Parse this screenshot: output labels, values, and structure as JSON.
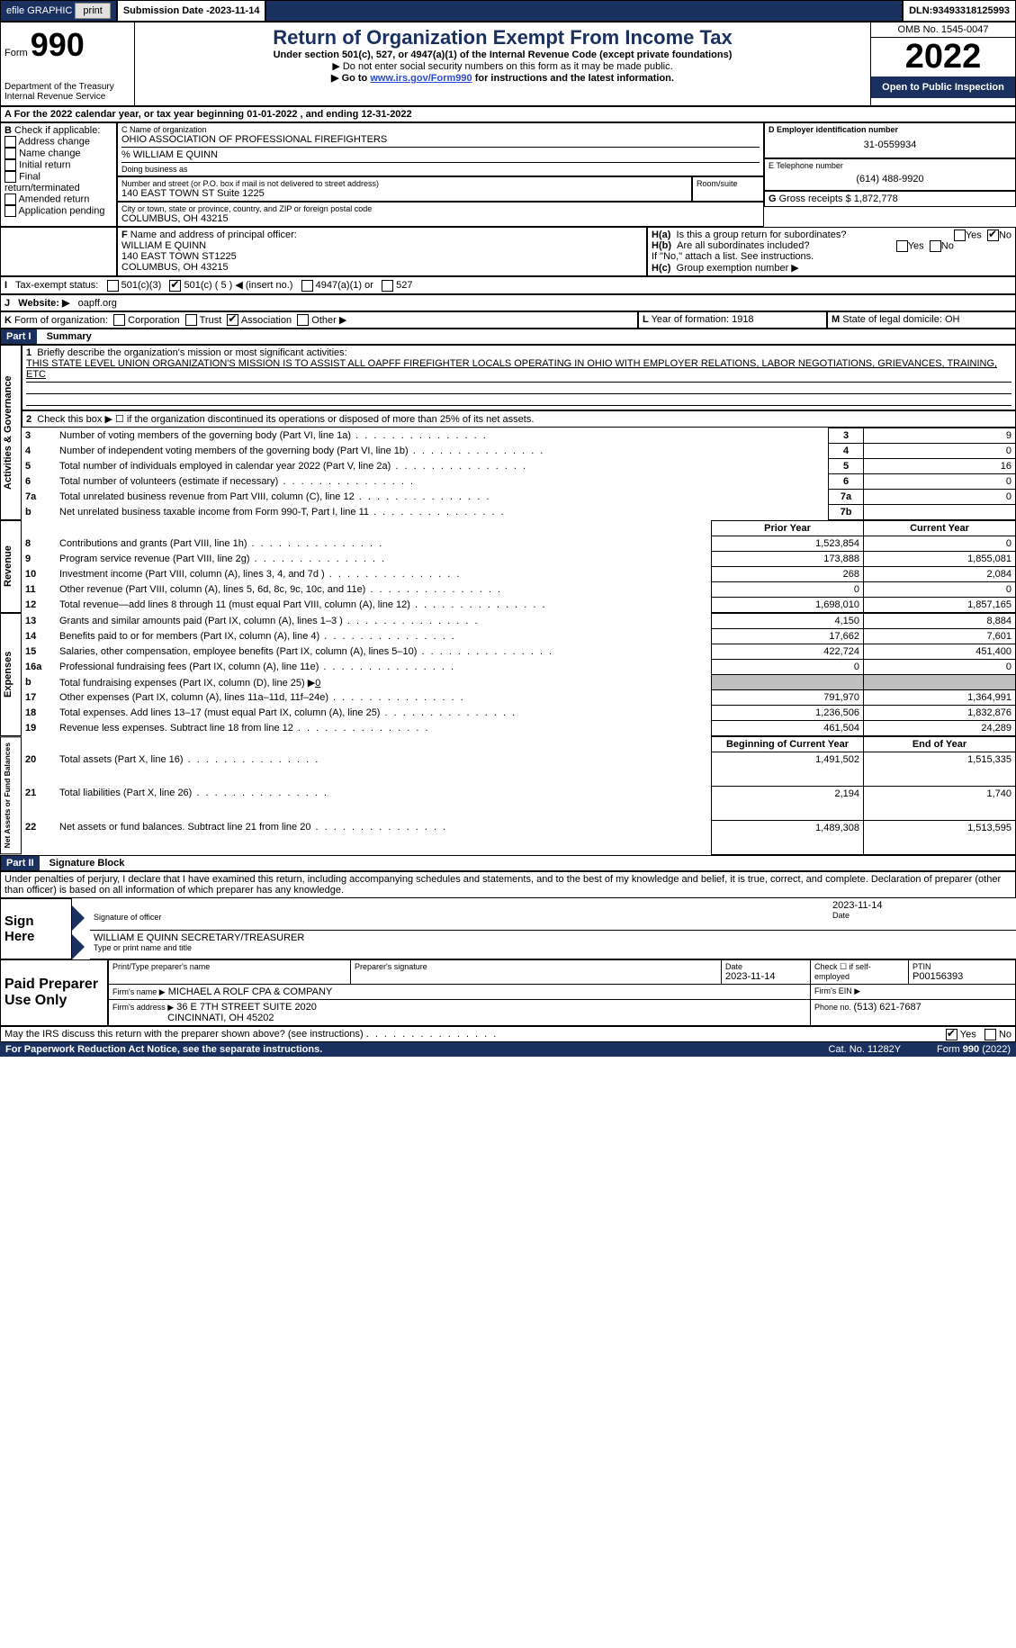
{
  "topbar": {
    "efile": "efile GRAPHIC",
    "print": "print",
    "submission_label": "Submission Date - ",
    "submission_date": "2023-11-14",
    "dln_label": "DLN: ",
    "dln": "93493318125993"
  },
  "header": {
    "form_label": "Form",
    "form_no": "990",
    "dept": "Department of the Treasury",
    "irs": "Internal Revenue Service",
    "title": "Return of Organization Exempt From Income Tax",
    "subtitle": "Under section 501(c), 527, or 4947(a)(1) of the Internal Revenue Code (except private foundations)",
    "note1": "Do not enter social security numbers on this form as it may be made public.",
    "note2_pre": "Go to ",
    "note2_link": "www.irs.gov/Form990",
    "note2_post": " for instructions and the latest information.",
    "omb_label": "OMB No. 1545-0047",
    "year": "2022",
    "open_inspection": "Open to Public Inspection"
  },
  "line_a": {
    "text_pre": "For the 2022 calendar year, or tax year beginning ",
    "begin": "01-01-2022",
    "mid": " , and ending ",
    "end": "12-31-2022"
  },
  "box_b": {
    "label": "B",
    "check_label": " Check if applicable:",
    "items": [
      "Address change",
      "Name change",
      "Initial return",
      "Final return/terminated",
      "Amended return",
      "Application pending"
    ]
  },
  "box_c": {
    "name_label": "C Name of organization",
    "name": "OHIO ASSOCIATION OF PROFESSIONAL FIREFIGHTERS",
    "care_of": "% WILLIAM E QUINN",
    "dba_label": "Doing business as",
    "street_label": "Number and street (or P.O. box if mail is not delivered to street address)",
    "room_label": "Room/suite",
    "street": "140 EAST TOWN ST Suite 1225",
    "city_label": "City or town, state or province, country, and ZIP or foreign postal code",
    "city": "COLUMBUS, OH  43215"
  },
  "box_d": {
    "label": "D Employer identification number",
    "value": "31-0559934"
  },
  "box_e": {
    "label": "E Telephone number",
    "value": "(614) 488-9920"
  },
  "box_g": {
    "label": "G",
    "text": "Gross receipts $ ",
    "value": "1,872,778"
  },
  "box_f": {
    "label": "F",
    "text": " Name and address of principal officer:",
    "name": "WILLIAM E QUINN",
    "addr1": "140 EAST TOWN ST1225",
    "addr2": "COLUMBUS, OH  43215"
  },
  "box_h": {
    "a_label": "H(a)",
    "a_text": "Is this a group return for subordinates?",
    "b_label": "H(b)",
    "b_text": "Are all subordinates included?",
    "note": "If \"No,\" attach a list. See instructions.",
    "c_label": "H(c)",
    "c_text": "Group exemption number ▶",
    "yes": "Yes",
    "no": "No"
  },
  "line_i": {
    "label": "I",
    "text": "Tax-exempt status:",
    "opt1": "501(c)(3)",
    "opt2a": "501(c) ( ",
    "opt2b": "5",
    "opt2c": " ) ◀ (insert no.)",
    "opt3": "4947(a)(1) or",
    "opt4": "527"
  },
  "line_j": {
    "label": "J",
    "text": "Website: ▶",
    "value": "oapff.org"
  },
  "line_k": {
    "label": "K",
    "text": " Form of organization:",
    "opts": [
      "Corporation",
      "Trust",
      "Association",
      "Other ▶"
    ]
  },
  "line_l": {
    "label": "L",
    "text": " Year of formation: ",
    "value": "1918"
  },
  "line_m": {
    "label": "M",
    "text": " State of legal domicile: ",
    "value": "OH"
  },
  "part1": {
    "bar": "Part I",
    "title": "Summary",
    "side_ag": "Activities & Governance",
    "side_rev": "Revenue",
    "side_exp": "Expenses",
    "side_na": "Net Assets or Fund Balances",
    "q1_label": "1",
    "q1_text": "Briefly describe the organization's mission or most significant activities:",
    "q1_val": "THIS STATE LEVEL UNION ORGANIZATION'S MISSION IS TO ASSIST ALL OAPFF FIREFIGHTER LOCALS OPERATING IN OHIO WITH EMPLOYER RELATIONS, LABOR NEGOTIATIONS, GRIEVANCES, TRAINING, ETC",
    "q2_label": "2",
    "q2_text": "Check this box ▶ ☐ if the organization discontinued its operations or disposed of more than 25% of its net assets.",
    "rows_ag": [
      {
        "n": "3",
        "t": "Number of voting members of the governing body (Part VI, line 1a)",
        "box": "3",
        "v": "9"
      },
      {
        "n": "4",
        "t": "Number of independent voting members of the governing body (Part VI, line 1b)",
        "box": "4",
        "v": "0"
      },
      {
        "n": "5",
        "t": "Total number of individuals employed in calendar year 2022 (Part V, line 2a)",
        "box": "5",
        "v": "16"
      },
      {
        "n": "6",
        "t": "Total number of volunteers (estimate if necessary)",
        "box": "6",
        "v": "0"
      },
      {
        "n": "7a",
        "t": "Total unrelated business revenue from Part VIII, column (C), line 12",
        "box": "7a",
        "v": "0"
      },
      {
        "n": "b",
        "t": "Net unrelated business taxable income from Form 990-T, Part I, line 11",
        "box": "7b",
        "v": ""
      }
    ],
    "col_prior": "Prior Year",
    "col_current": "Current Year",
    "rows_rev": [
      {
        "n": "8",
        "t": "Contributions and grants (Part VIII, line 1h)",
        "p": "1,523,854",
        "c": "0"
      },
      {
        "n": "9",
        "t": "Program service revenue (Part VIII, line 2g)",
        "p": "173,888",
        "c": "1,855,081"
      },
      {
        "n": "10",
        "t": "Investment income (Part VIII, column (A), lines 3, 4, and 7d )",
        "p": "268",
        "c": "2,084"
      },
      {
        "n": "11",
        "t": "Other revenue (Part VIII, column (A), lines 5, 6d, 8c, 9c, 10c, and 11e)",
        "p": "0",
        "c": "0"
      },
      {
        "n": "12",
        "t": "Total revenue—add lines 8 through 11 (must equal Part VIII, column (A), line 12)",
        "p": "1,698,010",
        "c": "1,857,165"
      }
    ],
    "rows_exp": [
      {
        "n": "13",
        "t": "Grants and similar amounts paid (Part IX, column (A), lines 1–3 )",
        "p": "4,150",
        "c": "8,884"
      },
      {
        "n": "14",
        "t": "Benefits paid to or for members (Part IX, column (A), line 4)",
        "p": "17,662",
        "c": "7,601"
      },
      {
        "n": "15",
        "t": "Salaries, other compensation, employee benefits (Part IX, column (A), lines 5–10)",
        "p": "422,724",
        "c": "451,400"
      },
      {
        "n": "16a",
        "t": "Professional fundraising fees (Part IX, column (A), line 11e)",
        "p": "0",
        "c": "0"
      },
      {
        "n": "b",
        "t": "Total fundraising expenses (Part IX, column (D), line 25) ▶",
        "p": "gray",
        "c": "gray",
        "extra": "0"
      },
      {
        "n": "17",
        "t": "Other expenses (Part IX, column (A), lines 11a–11d, 11f–24e)",
        "p": "791,970",
        "c": "1,364,991"
      },
      {
        "n": "18",
        "t": "Total expenses. Add lines 13–17 (must equal Part IX, column (A), line 25)",
        "p": "1,236,506",
        "c": "1,832,876"
      },
      {
        "n": "19",
        "t": "Revenue less expenses. Subtract line 18 from line 12",
        "p": "461,504",
        "c": "24,289"
      }
    ],
    "col_begin": "Beginning of Current Year",
    "col_end": "End of Year",
    "rows_na": [
      {
        "n": "20",
        "t": "Total assets (Part X, line 16)",
        "p": "1,491,502",
        "c": "1,515,335"
      },
      {
        "n": "21",
        "t": "Total liabilities (Part X, line 26)",
        "p": "2,194",
        "c": "1,740"
      },
      {
        "n": "22",
        "t": "Net assets or fund balances. Subtract line 21 from line 20",
        "p": "1,489,308",
        "c": "1,513,595"
      }
    ]
  },
  "part2": {
    "bar": "Part II",
    "title": "Signature Block",
    "jurat": "Under penalties of perjury, I declare that I have examined this return, including accompanying schedules and statements, and to the best of my knowledge and belief, it is true, correct, and complete. Declaration of preparer (other than officer) is based on all information of which preparer has any knowledge.",
    "sign_here": "Sign Here",
    "sig_officer": "Signature of officer",
    "sig_date": "2023-11-14",
    "date_lbl": "Date",
    "typed_name": "WILLIAM E QUINN  SECRETARY/TREASURER",
    "typed_lbl": "Type or print name and title",
    "paid": "Paid Preparer Use Only",
    "p_name_lbl": "Print/Type preparer's name",
    "p_sig_lbl": "Preparer's signature",
    "p_date_lbl": "Date",
    "p_date": "2023-11-14",
    "p_check_lbl": "Check ☐ if self-employed",
    "ptin_lbl": "PTIN",
    "ptin": "P00156393",
    "firm_name_lbl": "Firm's name    ▶",
    "firm_name": "MICHAEL A ROLF CPA & COMPANY",
    "firm_ein_lbl": "Firm's EIN ▶",
    "firm_addr_lbl": "Firm's address ▶",
    "firm_addr1": "36 E 7TH STREET SUITE 2020",
    "firm_addr2": "CINCINNATI, OH  45202",
    "phone_lbl": "Phone no. ",
    "phone": "(513) 621-7687",
    "discuss": "May the IRS discuss this return with the preparer shown above? (see instructions)",
    "yes": "Yes",
    "no": "No"
  },
  "footer": {
    "pra": "For Paperwork Reduction Act Notice, see the separate instructions.",
    "cat": "Cat. No. 11282Y",
    "form": "Form ",
    "form_no": "990",
    "form_yr": " (2022)"
  }
}
